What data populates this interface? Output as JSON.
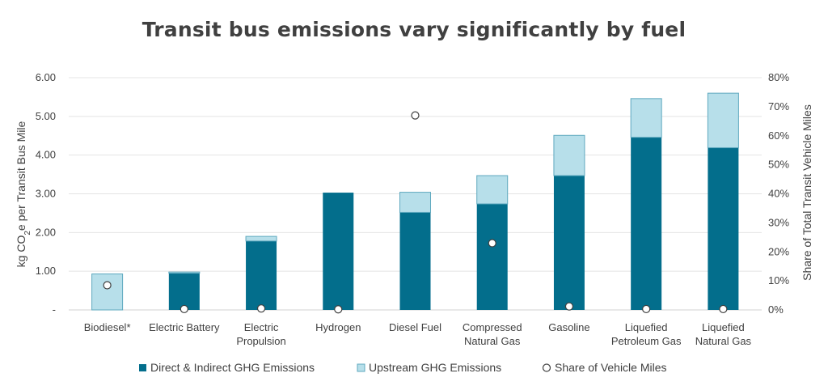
{
  "chart_data": {
    "type": "bar",
    "title": "Transit bus emissions vary significantly by fuel",
    "ylabel_left_prefix": "kg CO",
    "ylabel_left_sub": "2",
    "ylabel_left_suffix": "e per Transit Bus Mile",
    "ylabel_right": "Share of Total Transit Vehicle Miles",
    "ylim_left": [
      0,
      6
    ],
    "ylim_right": [
      0,
      80
    ],
    "left_ticks": [
      "-",
      "1.00",
      "2.00",
      "3.00",
      "4.00",
      "5.00",
      "6.00"
    ],
    "right_ticks": [
      "0%",
      "10%",
      "20%",
      "30%",
      "40%",
      "50%",
      "60%",
      "70%",
      "80%"
    ],
    "stacked": true,
    "categories": [
      [
        "Biodiesel*"
      ],
      [
        "Electric Battery"
      ],
      [
        "Electric",
        "Propulsion"
      ],
      [
        "Hydrogen"
      ],
      [
        "Diesel Fuel"
      ],
      [
        "Compressed",
        "Natural Gas"
      ],
      [
        "Gasoline"
      ],
      [
        "Liquefied",
        "Petroleum Gas"
      ],
      [
        "Liquefied",
        "Natural Gas"
      ]
    ],
    "series": [
      {
        "name": "Direct & Indirect GHG Emissions",
        "type": "bar",
        "color": "#036E8C",
        "values": [
          0.0,
          0.95,
          1.78,
          3.03,
          2.52,
          2.74,
          3.47,
          4.46,
          4.19
        ]
      },
      {
        "name": "Upstream GHG Emissions",
        "type": "bar",
        "color": "#B7DFEA",
        "values": [
          0.93,
          0.03,
          0.12,
          0.0,
          0.52,
          0.73,
          1.04,
          1.0,
          1.41
        ]
      },
      {
        "name": "Share of Vehicle Miles",
        "type": "scatter",
        "axis": "right",
        "values": [
          8.5,
          0.3,
          0.5,
          0.2,
          67.0,
          23.0,
          1.2,
          0.3,
          0.3
        ]
      }
    ],
    "legend_position": "bottom",
    "grid": true
  }
}
